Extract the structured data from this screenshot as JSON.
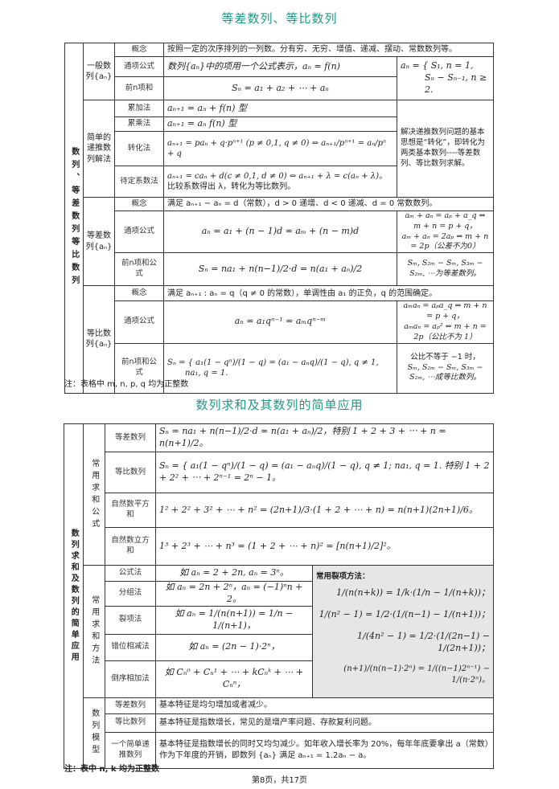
{
  "title1": "等差数列、等比数列",
  "table1": {
    "main": "数列、等差数列等比数列",
    "general": {
      "group": "一般数列{aₙ}",
      "concept_label": "概念",
      "concept": "按照一定的次序排列的一列数。分有穷、无穷、增值、递减、摆动、常数数列等。",
      "formula_label": "通项公式",
      "formula": "数列{aₙ}中的项用一个公式表示，aₙ = f(n)",
      "sum_label": "前n项和",
      "sum": "Sₙ = a₁ + a₂ + ⋯ + aₙ",
      "relation1": "aₙ = { S₁, n = 1,",
      "relation2": "Sₙ − Sₙ₋₁, n ≥ 2."
    },
    "recursive": {
      "group": "简单的递推数列解法",
      "rows": [
        {
          "label": "累加法",
          "text": "aₙ₊₁ = aₙ + f(n) 型"
        },
        {
          "label": "累乘法",
          "text": "aₙ₊₁ = aₙ f(n) 型"
        },
        {
          "label": "转化法",
          "text": "aₙ₊₁ = paₙ + q·pⁿ⁺¹ (p ≠ 0,1, q ≠ 0) ⇔ aₙ₊₁/pⁿ⁺¹ = aₙ/pⁿ + q"
        },
        {
          "label": "待定系数法",
          "text": "aₙ₊₁ = caₙ + d(c ≠ 0,1, d ≠ 0) ⇔ aₙ₊₁ + λ = c(aₙ + λ)。",
          "text2": "比较系数得出 λ，转化为等比数列。"
        }
      ],
      "note": "解决递推数列问题的基本思想是“转化”，即转化为两类基本数列----等差数列、等比数列求解。"
    },
    "arith": {
      "group": "等差数列{aₙ}",
      "concept_label": "概念",
      "concept": "满足 aₙ₊₁ − aₙ = d（常数），d > 0 递增、d < 0 递减、d = 0 常数数列。",
      "formula_label": "通项公式",
      "formula": "aₙ = a₁ + (n − 1)d = aₘ + (n − m)d",
      "prop1": "aₘ + aₙ = aₚ + a_q ⇔ m + n = p + q，",
      "prop2": "aₘ + aₙ = 2aₚ ⇔ m + n = 2p（公差不为0）",
      "sum_label": "前n项和公式",
      "sum": "Sₙ = na₁ + n(n−1)/2·d = n(a₁ + aₙ)/2",
      "sum_prop": "Sₘ, S₂ₘ − Sₘ, S₃ₘ − S₂ₘ, ⋯为等差数列。"
    },
    "geom": {
      "group": "等比数列{aₙ}",
      "concept_label": "概念",
      "concept": "满足 aₙ₊₁ : aₙ = q（q ≠ 0 的常数），单调性由 a₁ 的正负，q 的范围确定。",
      "formula_label": "通项公式",
      "formula": "aₙ = a₁qⁿ⁻¹ = aₘqⁿ⁻ᵐ",
      "prop1": "aₘaₙ = aₚa_q ⇔ m + n = p + q，",
      "prop2": "aₘaₙ = aₚ² ⇔ m + n = 2p（公比不为 1）",
      "sum_label": "前n项和公式",
      "sum1": "Sₙ = { a₁(1 − qⁿ)/(1 − q) = (a₁ − aₙq)/(1 − q), q ≠ 1,",
      "sum2": "na₁, q = 1.",
      "sum_prop1": "公比不等于 −1 时，",
      "sum_prop2": "Sₘ, S₂ₘ − Sₘ, S₃ₘ − S₂ₘ, ⋯成等比数列。"
    }
  },
  "note1": "注：表格中 m, n, p, q 均为正整数",
  "title2": "数列求和及其数列的简单应用",
  "table2": {
    "main": "数列求和及数列的简单应用",
    "sum_group": "常用求和公式",
    "sums": [
      {
        "label": "等差数列",
        "text": "Sₙ = na₁ + n(n−1)/2·d = n(a₁ + aₙ)/2，特别 1 + 2 + 3 + ⋯ + n = n(n+1)/2。"
      },
      {
        "label": "等比数列",
        "text": "Sₙ = { a₁(1 − qⁿ)/(1 − q) = (a₁ − aₙq)/(1 − q), q ≠ 1; na₁, q = 1.  特别 1 + 2 + 2² + ⋯ + 2ⁿ⁻¹ = 2ⁿ − 1。"
      },
      {
        "label": "自然数平方和",
        "text": "1² + 2² + 3² + ⋯ + n² = (2n+1)/3·(1 + 2 + ⋯ + n) = n(n+1)(2n+1)/6。"
      },
      {
        "label": "自然数立方和",
        "text": "1³ + 2³ + ⋯ + n³ = (1 + 2 + ⋯ + n)² = [n(n+1)/2]²。"
      }
    ],
    "method_group": "常用求和方法",
    "methods": [
      {
        "label": "公式法",
        "text": "如 aₙ = 2 + 2n, aₙ = 3ⁿ。"
      },
      {
        "label": "分组法",
        "text": "如 aₙ = 2n + 2ⁿ，aₙ = (−1)ⁿn + 2。"
      },
      {
        "label": "裂项法",
        "text": "如 aₙ = 1/(n(n+1)) = 1/n − 1/(n+1)，"
      },
      {
        "label": "错位相减法",
        "text": "如 aₙ = (2n − 1)·2ⁿ，"
      },
      {
        "label": "倒序相加法",
        "text": "如 Cₙ⁰ + Cₙ¹ + ⋯ + kCₙᵏ + ⋯ + Cₙⁿ，"
      }
    ],
    "split_title": "常用裂项方法：",
    "split": [
      "1/(n(n+k)) = 1/k·(1/n − 1/(n+k))；",
      "1/(n² − 1) = 1/2·(1/(n−1) − 1/(n+1))；",
      "1/(4n² − 1) = 1/2·(1/(2n−1) − 1/(2n+1))；",
      "(n+1)/(n(n−1)·2ⁿ) = 1/((n−1)2ⁿ⁻¹) − 1/(n·2ⁿ)。"
    ],
    "model_group": "数列模型",
    "models": [
      {
        "label": "等差数列",
        "text": "基本特征是均匀增加或者减少。"
      },
      {
        "label": "等比数列",
        "text": "基本特征是指数增长，常见的是增产率问题、存款复利问题。"
      },
      {
        "label": "一个简单递推数列",
        "text": "基本特征是指数增长的同时又均匀减少。如年收入增长率为 20%，每年年底要拿出 a（常数）作为下年度的开销，即数列 {aₙ} 满足 aₙ₊₁ = 1.2aₙ − a。"
      }
    ]
  },
  "note2": "注：表中 n, k 均为正整数",
  "footer": "第8页，共17页",
  "colors": {
    "title": "#1a9a86",
    "gray_cell": "#e6e6e6"
  }
}
